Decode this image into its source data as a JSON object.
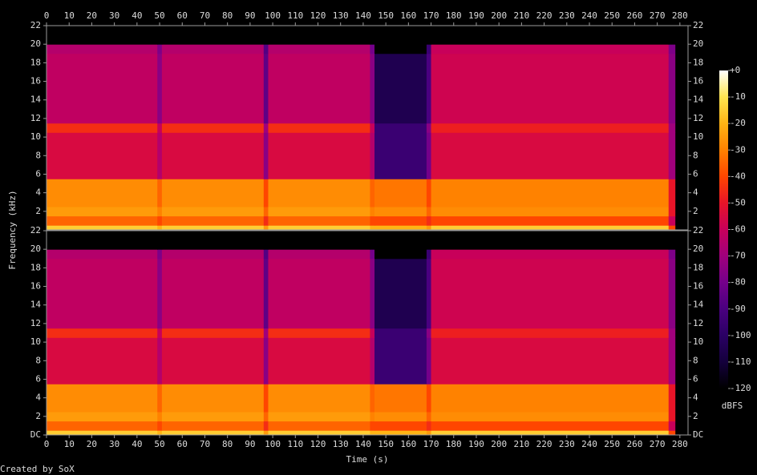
{
  "chart_data": {
    "type": "heatmap",
    "xlabel": "Time (s)",
    "ylabel": "Frequency (kHz)",
    "credit": "Created by SoX",
    "xlim": [
      0,
      283.6
    ],
    "xticks": [
      0,
      10,
      20,
      30,
      40,
      50,
      60,
      70,
      80,
      90,
      100,
      110,
      120,
      130,
      140,
      150,
      160,
      170,
      180,
      190,
      200,
      210,
      220,
      230,
      240,
      250,
      260,
      270,
      280
    ],
    "ylim": [
      0,
      22
    ],
    "x_edges": [
      0,
      49,
      51,
      96,
      98,
      143,
      145,
      168,
      170,
      275,
      278,
      283.6
    ],
    "y_edges": [
      0,
      0.5,
      1.5,
      2.5,
      5.5,
      10.5,
      11.5,
      19,
      20,
      22
    ],
    "channels": [
      {
        "yticks": [
          2,
          4,
          6,
          8,
          10,
          12,
          14,
          16,
          18,
          20,
          22
        ],
        "z": [
          [
            -15,
            -20,
            -15,
            -25,
            -15,
            -20,
            -20,
            -25,
            -15,
            -40,
            -120
          ],
          [
            -35,
            -40,
            -35,
            -45,
            -35,
            -40,
            -40,
            -45,
            -40,
            -60,
            -120
          ],
          [
            -25,
            -30,
            -25,
            -35,
            -25,
            -30,
            -28,
            -35,
            -28,
            -50,
            -120
          ],
          [
            -28,
            -35,
            -28,
            -40,
            -28,
            -35,
            -32,
            -40,
            -30,
            -50,
            -120
          ],
          [
            -55,
            -65,
            -55,
            -75,
            -55,
            -65,
            -95,
            -80,
            -55,
            -70,
            -120
          ],
          [
            -45,
            -60,
            -45,
            -70,
            -45,
            -60,
            -95,
            -75,
            -48,
            -70,
            -120
          ],
          [
            -62,
            -75,
            -62,
            -85,
            -62,
            -75,
            -105,
            -90,
            -58,
            -75,
            -120
          ],
          [
            -65,
            -78,
            -65,
            -88,
            -65,
            -80,
            -120,
            -95,
            -60,
            -78,
            -120
          ],
          [
            -120,
            -120,
            -120,
            -120,
            -120,
            -120,
            -120,
            -120,
            -120,
            -120,
            -120
          ]
        ]
      },
      {
        "yticks": [
          {
            "value": 0,
            "label": "DC"
          },
          2,
          4,
          6,
          8,
          10,
          12,
          14,
          16,
          18,
          20,
          22
        ],
        "z": [
          [
            -15,
            -20,
            -15,
            -25,
            -15,
            -20,
            -20,
            -25,
            -15,
            -40,
            -120
          ],
          [
            -35,
            -40,
            -35,
            -45,
            -35,
            -40,
            -40,
            -45,
            -40,
            -60,
            -120
          ],
          [
            -25,
            -30,
            -25,
            -35,
            -25,
            -30,
            -28,
            -35,
            -28,
            -50,
            -120
          ],
          [
            -28,
            -35,
            -28,
            -40,
            -28,
            -35,
            -32,
            -40,
            -30,
            -50,
            -120
          ],
          [
            -55,
            -65,
            -55,
            -75,
            -55,
            -65,
            -95,
            -80,
            -55,
            -70,
            -120
          ],
          [
            -45,
            -60,
            -45,
            -70,
            -45,
            -60,
            -95,
            -75,
            -48,
            -70,
            -120
          ],
          [
            -62,
            -75,
            -62,
            -85,
            -62,
            -75,
            -105,
            -90,
            -58,
            -75,
            -120
          ],
          [
            -65,
            -78,
            -65,
            -88,
            -65,
            -80,
            -120,
            -95,
            -60,
            -78,
            -120
          ],
          [
            -120,
            -120,
            -120,
            -120,
            -120,
            -120,
            -120,
            -120,
            -120,
            -120,
            -120
          ]
        ]
      }
    ],
    "colorbar": {
      "label": "dBFS",
      "lim": [
        -120,
        0
      ],
      "ticks": [
        {
          "value": 0,
          "label": "+0"
        },
        -10,
        -20,
        -30,
        -40,
        -50,
        -60,
        -70,
        -80,
        -90,
        -100,
        -110,
        -120
      ],
      "colormap": [
        "#000000",
        "#14003c",
        "#2a0064",
        "#4a0080",
        "#74008a",
        "#a0007c",
        "#c8005a",
        "#e81428",
        "#ff4600",
        "#ff8200",
        "#ffb414",
        "#ffe650",
        "#ffffff"
      ]
    }
  }
}
